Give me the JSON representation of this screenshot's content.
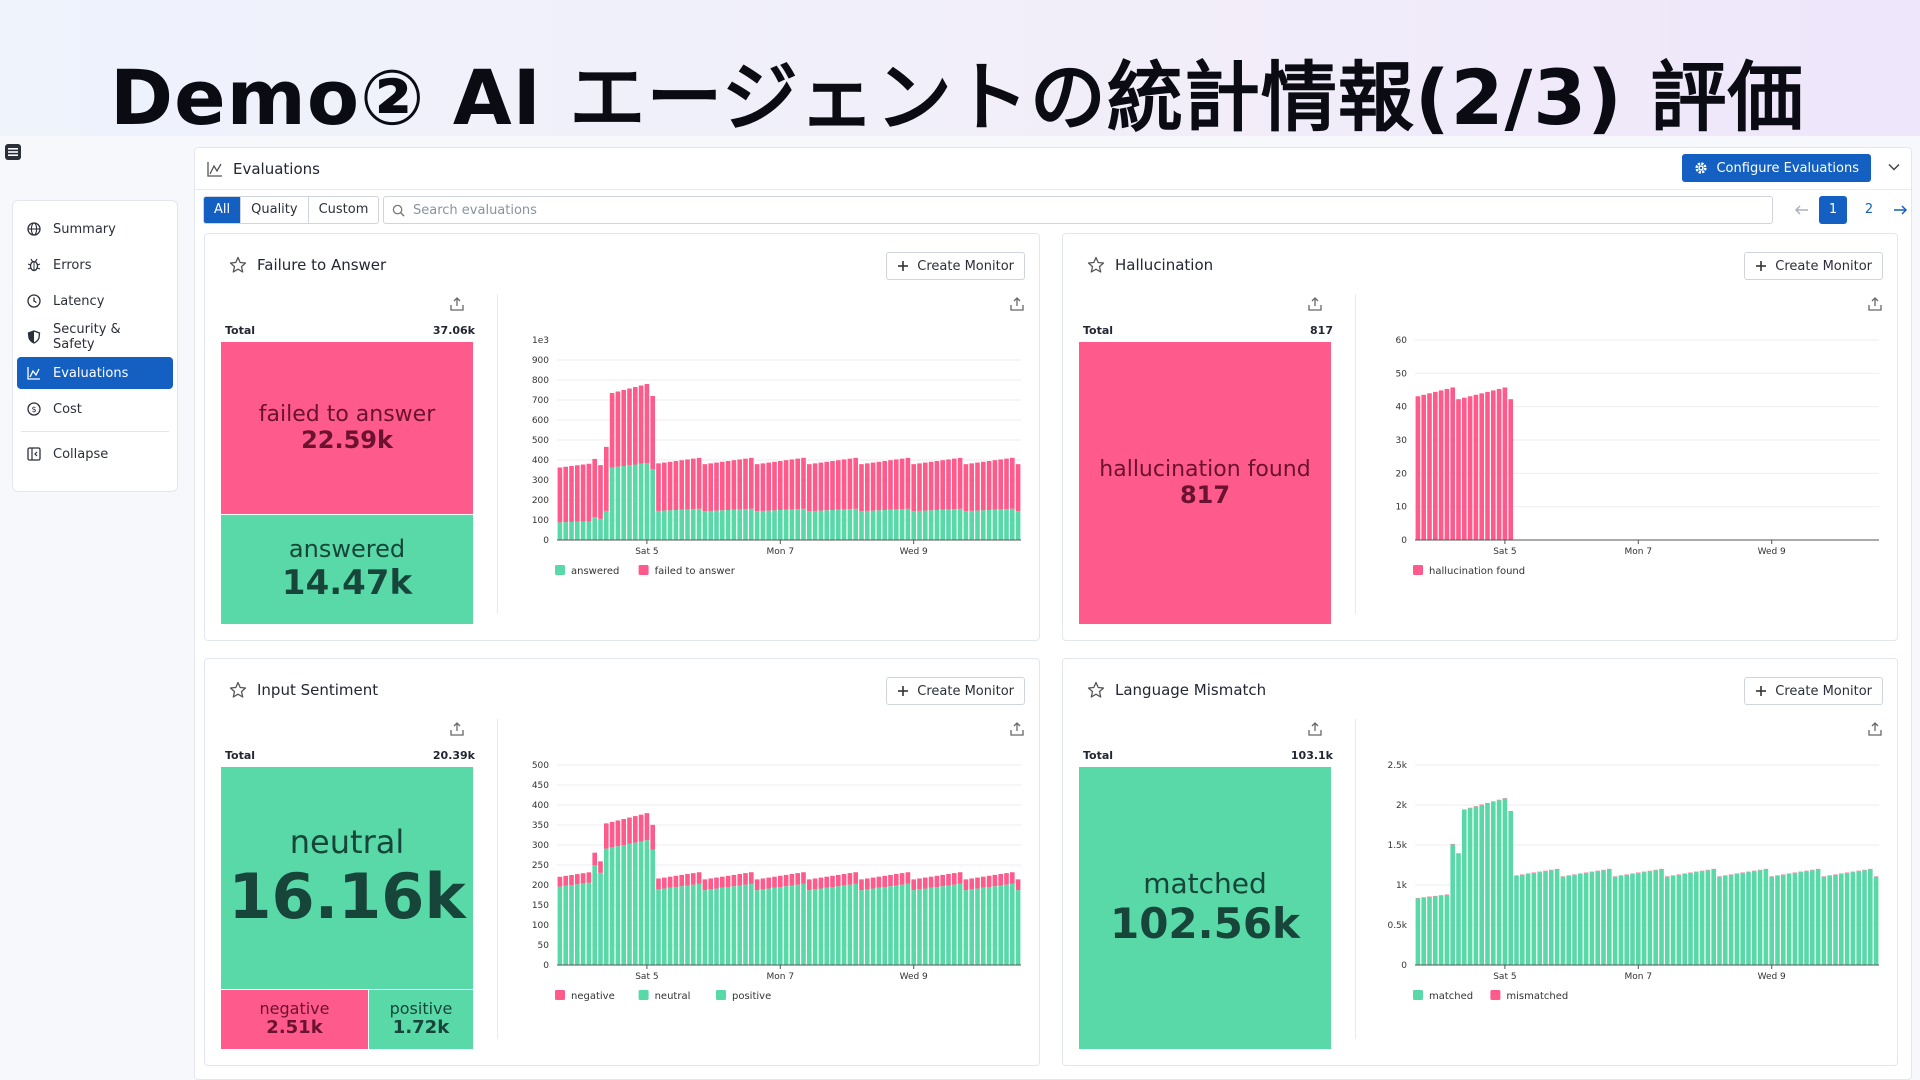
{
  "slide": {
    "title": "Demo② AI エージェントの統計情報(2/3) 評価"
  },
  "sidebar": {
    "items": [
      {
        "label": "Summary",
        "icon": "globe-icon",
        "active": false
      },
      {
        "label": "Errors",
        "icon": "bug-icon",
        "active": false
      },
      {
        "label": "Latency",
        "icon": "clock-icon",
        "active": false
      },
      {
        "label": "Security & Safety",
        "icon": "shield-icon",
        "active": false
      },
      {
        "label": "Evaluations",
        "icon": "chart-icon",
        "active": true
      },
      {
        "label": "Cost",
        "icon": "coin-icon",
        "active": false
      }
    ],
    "collapse_label": "Collapse"
  },
  "panel": {
    "title": "Evaluations",
    "configure_label": "Configure Evaluations",
    "filters": [
      "All",
      "Quality",
      "Custom"
    ],
    "active_filter": "All",
    "search_placeholder": "Search evaluations",
    "pages": [
      "1",
      "2"
    ],
    "current_page": "1"
  },
  "colors": {
    "pink": "#fe5a8b",
    "green": "#59d9a8",
    "accent": "#1360c2"
  },
  "cards": [
    {
      "title": "Failure to Answer",
      "create_label": "Create Monitor",
      "total_label": "Total",
      "total": "37.06k",
      "treemap": [
        {
          "label": "failed to answer",
          "value": "22.59k",
          "color": "pink"
        },
        {
          "label": "answered",
          "value": "14.47k",
          "color": "green"
        }
      ]
    },
    {
      "title": "Hallucination",
      "create_label": "Create Monitor",
      "total_label": "Total",
      "total": "817",
      "treemap": [
        {
          "label": "hallucination found",
          "value": "817",
          "color": "pink"
        }
      ]
    },
    {
      "title": "Input Sentiment",
      "create_label": "Create Monitor",
      "total_label": "Total",
      "total": "20.39k",
      "treemap": [
        {
          "label": "neutral",
          "value": "16.16k",
          "color": "green"
        },
        {
          "label": "negative",
          "value": "2.51k",
          "color": "pink"
        },
        {
          "label": "positive",
          "value": "1.72k",
          "color": "green"
        }
      ]
    },
    {
      "title": "Language Mismatch",
      "create_label": "Create Monitor",
      "total_label": "Total",
      "total": "103.1k",
      "treemap": [
        {
          "label": "matched",
          "value": "102.56k",
          "color": "green"
        }
      ]
    }
  ],
  "chart_data": [
    {
      "type": "bar",
      "stacked": true,
      "title": "Failure to Answer",
      "y_exponent_label": "1e3",
      "ylim": [
        0,
        1000
      ],
      "yticks": [
        0,
        100,
        200,
        300,
        400,
        500,
        600,
        700,
        800,
        900
      ],
      "x_tick_labels": [
        "Sat 5",
        "Mon 7",
        "Wed 9"
      ],
      "x_tick_index": [
        15,
        38,
        61
      ],
      "n_bars": 80,
      "series": [
        {
          "name": "answered",
          "color": "green",
          "profile": [
            {
              "from": 0,
              "to": 6,
              "value": 90
            },
            {
              "from": 6,
              "to": 8,
              "value": 110
            },
            {
              "from": 8,
              "to": 9,
              "value": 150
            },
            {
              "from": 9,
              "to": 17,
              "value": 370
            },
            {
              "from": 17,
              "to": 80,
              "value": 150
            }
          ]
        },
        {
          "name": "failed to answer",
          "color": "pink",
          "profile": [
            {
              "from": 0,
              "to": 6,
              "value": 280
            },
            {
              "from": 6,
              "to": 8,
              "value": 280
            },
            {
              "from": 8,
              "to": 9,
              "value": 330
            },
            {
              "from": 9,
              "to": 17,
              "value": 380
            },
            {
              "from": 17,
              "to": 80,
              "value": 245
            }
          ]
        }
      ],
      "legend": [
        "answered",
        "failed to answer"
      ]
    },
    {
      "type": "bar",
      "stacked": true,
      "title": "Hallucination",
      "ylim": [
        0,
        60
      ],
      "yticks": [
        0,
        10,
        20,
        30,
        40,
        50,
        60
      ],
      "x_tick_labels": [
        "Sat 5",
        "Mon 7",
        "Wed 9"
      ],
      "x_tick_index": [
        15,
        38,
        61
      ],
      "n_bars": 80,
      "series": [
        {
          "name": "hallucination found",
          "color": "pink",
          "profile": [
            {
              "from": 0,
              "to": 17,
              "value": 44
            },
            {
              "from": 17,
              "to": 80,
              "value": 0
            }
          ]
        }
      ],
      "legend": [
        "hallucination found"
      ]
    },
    {
      "type": "bar",
      "stacked": true,
      "title": "Input Sentiment",
      "ylim": [
        0,
        500
      ],
      "yticks": [
        0,
        50,
        100,
        150,
        200,
        250,
        300,
        350,
        400,
        450,
        500
      ],
      "x_tick_labels": [
        "Sat 5",
        "Mon 7",
        "Wed 9"
      ],
      "x_tick_index": [
        15,
        38,
        61
      ],
      "n_bars": 80,
      "series": [
        {
          "name": "positive",
          "color": "green",
          "profile": [
            {
              "from": 0,
              "to": 80,
              "value": 0
            }
          ]
        },
        {
          "name": "neutral",
          "color": "green",
          "profile": [
            {
              "from": 0,
              "to": 6,
              "value": 200
            },
            {
              "from": 6,
              "to": 8,
              "value": 240
            },
            {
              "from": 8,
              "to": 17,
              "value": 300
            },
            {
              "from": 17,
              "to": 80,
              "value": 195
            }
          ]
        },
        {
          "name": "negative",
          "color": "pink",
          "profile": [
            {
              "from": 0,
              "to": 6,
              "value": 25
            },
            {
              "from": 6,
              "to": 8,
              "value": 30
            },
            {
              "from": 8,
              "to": 17,
              "value": 65
            },
            {
              "from": 17,
              "to": 80,
              "value": 28
            }
          ]
        }
      ],
      "legend": [
        "negative",
        "neutral",
        "positive"
      ]
    },
    {
      "type": "bar",
      "stacked": true,
      "title": "Language Mismatch",
      "ylim": [
        0,
        2500
      ],
      "yticks": [
        0,
        500,
        1000,
        1500,
        2000,
        2500
      ],
      "ytick_labels": [
        "0",
        "0.5k",
        "1k",
        "1.5k",
        "2k",
        "2.5k"
      ],
      "x_tick_labels": [
        "Sat 5",
        "Mon 7",
        "Wed 9"
      ],
      "x_tick_index": [
        15,
        38,
        61
      ],
      "n_bars": 80,
      "series": [
        {
          "name": "matched",
          "color": "green",
          "profile": [
            {
              "from": 0,
              "to": 6,
              "value": 850
            },
            {
              "from": 6,
              "to": 8,
              "value": 1450
            },
            {
              "from": 8,
              "to": 17,
              "value": 2000
            },
            {
              "from": 17,
              "to": 80,
              "value": 1150
            }
          ]
        },
        {
          "name": "mismatched",
          "color": "pink",
          "profile": [
            {
              "from": 0,
              "to": 80,
              "value": 5
            }
          ]
        }
      ],
      "legend": [
        "matched",
        "mismatched"
      ]
    }
  ]
}
